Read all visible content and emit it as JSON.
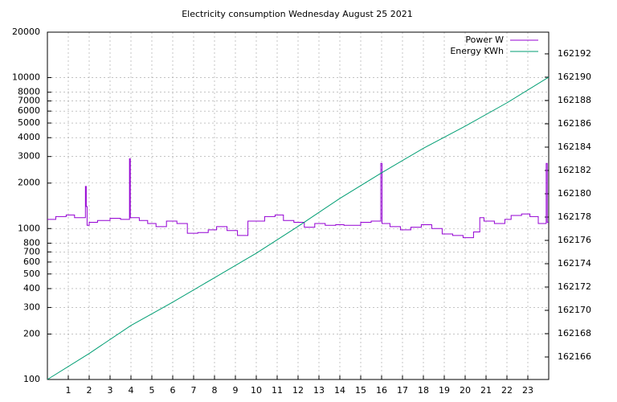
{
  "chart_data": {
    "type": "line",
    "title": "Electricity consumption Wednesday August 25 2021",
    "steps": true,
    "log_y": true,
    "grid": true,
    "legend": "top-right",
    "xlim": [
      0,
      24
    ],
    "xticks": [
      1,
      2,
      3,
      4,
      5,
      6,
      7,
      8,
      9,
      10,
      11,
      12,
      13,
      14,
      15,
      16,
      17,
      18,
      19,
      20,
      21,
      22,
      23
    ],
    "ylim": [
      100,
      20000
    ],
    "yticks": [
      100,
      200,
      300,
      400,
      500,
      600,
      700,
      800,
      1000,
      2000,
      3000,
      4000,
      5000,
      6000,
      7000,
      8000,
      10000,
      20000
    ],
    "y2lim": [
      162164.07,
      162193.86
    ],
    "y2ticks": [
      162166,
      162168,
      162170,
      162172,
      162174,
      162176,
      162178,
      162180,
      162182,
      162184,
      162186,
      162188,
      162190,
      162192
    ],
    "series": [
      {
        "name": "Power W",
        "color": "#9400d3",
        "x": [
          0,
          0.4,
          0.9,
          1.3,
          1.82,
          1.86,
          1.9,
          2.0,
          2.4,
          3.0,
          3.5,
          3.93,
          3.97,
          4.4,
          4.8,
          5.2,
          5.7,
          6.2,
          6.7,
          7.2,
          7.7,
          8.1,
          8.6,
          9.1,
          9.6,
          10.4,
          10.9,
          11.3,
          11.8,
          12.3,
          12.8,
          13.3,
          13.8,
          14.2,
          15.0,
          15.5,
          15.96,
          16.02,
          16.4,
          16.9,
          17.4,
          17.9,
          18.4,
          18.9,
          19.4,
          19.9,
          20.4,
          20.7,
          20.9,
          21.4,
          21.9,
          22.2,
          22.7,
          23.1,
          23.5,
          23.88,
          23.93,
          24
        ],
        "values": [
          1150,
          1200,
          1230,
          1180,
          1900,
          1400,
          1050,
          1100,
          1130,
          1170,
          1150,
          2900,
          1180,
          1130,
          1080,
          1030,
          1120,
          1080,
          930,
          940,
          980,
          1030,
          970,
          900,
          1120,
          1200,
          1230,
          1130,
          1100,
          1020,
          1080,
          1050,
          1060,
          1050,
          1100,
          1120,
          2700,
          1080,
          1030,
          980,
          1020,
          1060,
          1000,
          920,
          900,
          870,
          950,
          1180,
          1120,
          1080,
          1150,
          1220,
          1250,
          1200,
          1080,
          2700,
          1100,
          1100
        ]
      },
      {
        "name": "Energy KWh",
        "color": "#009e73",
        "axis": "y2",
        "x": [
          0,
          2,
          4,
          6,
          8,
          10,
          12,
          14,
          16,
          18,
          20,
          22,
          24
        ],
        "values": [
          162164.07,
          162166.3,
          162168.7,
          162170.7,
          162172.8,
          162174.9,
          162177.2,
          162179.6,
          162181.8,
          162183.9,
          162185.8,
          162187.8,
          162190
        ]
      }
    ]
  }
}
